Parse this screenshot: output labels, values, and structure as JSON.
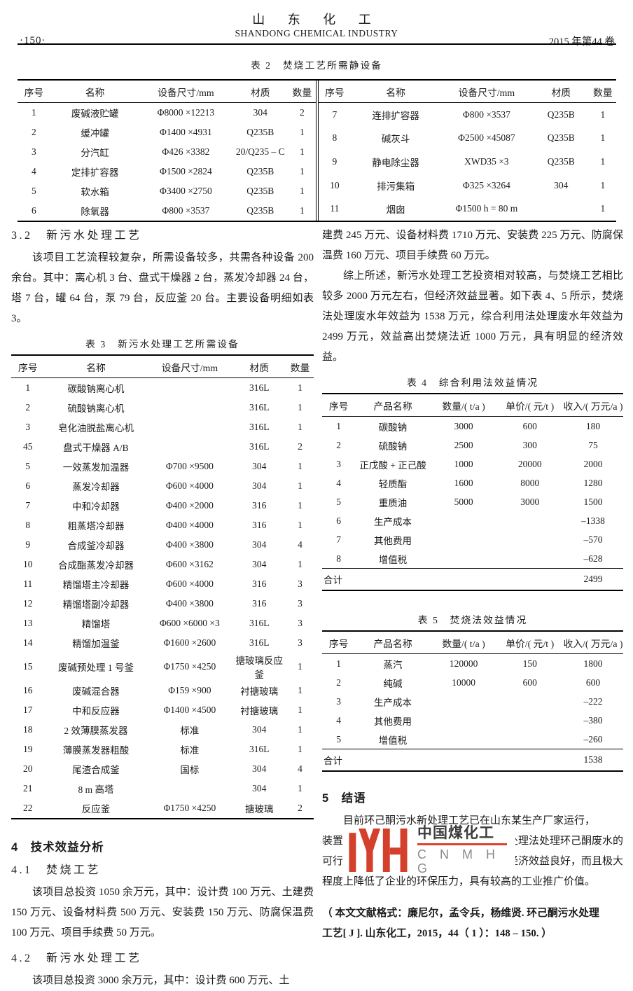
{
  "header": {
    "page_number": "·150·",
    "journal_cn": "山 东 化 工",
    "journal_en": "SHANDONG CHEMICAL INDUSTRY",
    "volume": "2015 年第44 卷"
  },
  "table2": {
    "caption": "表 2　焚烧工艺所需静设备",
    "columns": [
      "序号",
      "名称",
      "设备尺寸/mm",
      "材质",
      "数量"
    ],
    "left_rows": [
      [
        "1",
        "废碱液贮罐",
        "Φ8000 ×12213",
        "304",
        "2"
      ],
      [
        "2",
        "缓冲罐",
        "Φ1400 ×4931",
        "Q235B",
        "1"
      ],
      [
        "3",
        "分汽缸",
        "Φ426 ×3382",
        "20/Q235 – C",
        "1"
      ],
      [
        "4",
        "定排扩容器",
        "Φ1500 ×2824",
        "Q235B",
        "1"
      ],
      [
        "5",
        "软水箱",
        "Φ3400 ×2750",
        "Q235B",
        "1"
      ],
      [
        "6",
        "除氧器",
        "Φ800 ×3537",
        "Q235B",
        "1"
      ]
    ],
    "right_rows": [
      [
        "7",
        "连排扩容器",
        "Φ800 ×3537",
        "Q235B",
        "1"
      ],
      [
        "8",
        "碱灰斗",
        "Φ2500 ×45087",
        "Q235B",
        "1"
      ],
      [
        "9",
        "静电除尘器",
        "XWD35 ×3",
        "Q235B",
        "1"
      ],
      [
        "10",
        "排污集箱",
        "Φ325 ×3264",
        "304",
        "1"
      ],
      [
        "11",
        "烟囱",
        "Φ1500 h = 80 m",
        "",
        "1"
      ]
    ]
  },
  "section_3_2": {
    "title": "3.2　新污水处理工艺",
    "body": "该项目工艺流程较复杂，所需设备较多，共需各种设备 200 余台。其中：离心机 3 台、盘式干燥器 2 台，蒸发冷却器 24 台，塔 7 台，罐 64 台，泵 79 台，反应釜 20 台。主要设备明细如表 3。"
  },
  "table3": {
    "caption": "表 3　新污水处理工艺所需设备",
    "columns": [
      "序号",
      "名称",
      "设备尺寸/mm",
      "材质",
      "数量"
    ],
    "rows": [
      [
        "1",
        "碳酸钠离心机",
        "",
        "316L",
        "1"
      ],
      [
        "2",
        "硫酸钠离心机",
        "",
        "316L",
        "1"
      ],
      [
        "3",
        "皂化油脱盐离心机",
        "",
        "316L",
        "1"
      ],
      [
        "45",
        "盘式干燥器 A/B",
        "",
        "316L",
        "2"
      ],
      [
        "5",
        "一效蒸发加温器",
        "Φ700 ×9500",
        "304",
        "1"
      ],
      [
        "6",
        "蒸发冷却器",
        "Φ600 ×4000",
        "304",
        "1"
      ],
      [
        "7",
        "中和冷却器",
        "Φ400 ×2000",
        "316",
        "1"
      ],
      [
        "8",
        "粗蒸塔冷却器",
        "Φ400 ×4000",
        "316",
        "1"
      ],
      [
        "9",
        "合成釜冷却器",
        "Φ400 ×3800",
        "304",
        "4"
      ],
      [
        "10",
        "合成酯蒸发冷却器",
        "Φ600 ×3162",
        "304",
        "1"
      ],
      [
        "11",
        "精馏塔主冷却器",
        "Φ600 ×4000",
        "316",
        "3"
      ],
      [
        "12",
        "精馏塔副冷却器",
        "Φ400 ×3800",
        "316",
        "3"
      ],
      [
        "13",
        "精馏塔",
        "Φ600 ×6000 ×3",
        "316L",
        "3"
      ],
      [
        "14",
        "精馏加温釜",
        "Φ1600 ×2600",
        "316L",
        "3"
      ],
      [
        "15",
        "废碱预处理 1 号釜",
        "Φ1750 ×4250",
        "搪玻璃反应釜",
        "1"
      ],
      [
        "16",
        "废碱混合器",
        "Φ159 ×900",
        "衬搪玻璃",
        "1"
      ],
      [
        "17",
        "中和反应器",
        "Φ1400 ×4500",
        "衬搪玻璃",
        "1"
      ],
      [
        "18",
        "2 效薄膜蒸发器",
        "标准",
        "304",
        "1"
      ],
      [
        "19",
        "薄膜蒸发器粗酸",
        "标准",
        "316L",
        "1"
      ],
      [
        "20",
        "尾渣合成釜",
        "国标",
        "304",
        "4"
      ],
      [
        "21",
        "8 m 高塔",
        "",
        "304",
        "1"
      ],
      [
        "22",
        "反应釜",
        "Φ1750 ×4250",
        "搪玻璃",
        "2"
      ]
    ]
  },
  "section_4": {
    "title": "4　技术效益分析"
  },
  "section_4_1": {
    "title": "4.1　焚烧工艺",
    "body": "该项目总投资 1050 余万元，其中：设计费 100 万元、土建费 150 万元、设备材料费 500 万元、安装费 150 万元、防腐保温费 100 万元、项目手续费 50 万元。"
  },
  "section_4_2": {
    "title": "4.2　新污水处理工艺",
    "body": "该项目总投资 3000 余万元，其中：设计费 600 万元、土"
  },
  "right_col": {
    "p1": "建费 245 万元、设备材料费 1710 万元、安装费 225 万元、防腐保温费 160 万元、项目手续费 60 万元。",
    "p2": "综上所述，新污水处理工艺投资相对较高，与焚烧工艺相比较多 2000 万元左右，但经济效益显著。如下表 4、5 所示，焚烧法处理废水年效益为 1538 万元，综合利用法处理废水年效益为 2499 万元，效益高出焚烧法近 1000 万元，具有明显的经济效益。"
  },
  "table4": {
    "caption": "表 4　综合利用法效益情况",
    "columns": [
      "序号",
      "产品名称",
      "数量/( t/a )",
      "单价/( 元/t )",
      "收入/( 万元/a )"
    ],
    "rows": [
      [
        "1",
        "碳酸钠",
        "3000",
        "600",
        "180"
      ],
      [
        "2",
        "硫酸钠",
        "2500",
        "300",
        "75"
      ],
      [
        "3",
        "正戊酸 + 正己酸",
        "1000",
        "20000",
        "2000"
      ],
      [
        "4",
        "轻质酯",
        "1600",
        "8000",
        "1280"
      ],
      [
        "5",
        "重质油",
        "5000",
        "3000",
        "1500"
      ],
      [
        "6",
        "生产成本",
        "",
        "",
        "–1338"
      ],
      [
        "7",
        "其他费用",
        "",
        "",
        "–570"
      ],
      [
        "8",
        "增值税",
        "",
        "",
        "–628"
      ]
    ],
    "total_label": "合计",
    "total_value": "2499"
  },
  "table5": {
    "caption": "表 5　焚烧法效益情况",
    "columns": [
      "序号",
      "产品名称",
      "数量/( t/a )",
      "单价/( 元/t )",
      "收入/( 万元/a )"
    ],
    "rows": [
      [
        "1",
        "蒸汽",
        "120000",
        "150",
        "1800"
      ],
      [
        "2",
        "纯碱",
        "10000",
        "600",
        "600"
      ],
      [
        "3",
        "生产成本",
        "",
        "",
        "–222"
      ],
      [
        "4",
        "其他费用",
        "",
        "",
        "–380"
      ],
      [
        "5",
        "增值税",
        "",
        "",
        "–260"
      ]
    ],
    "total_label": "合计",
    "total_value": "1538"
  },
  "section_5": {
    "title": "5　结语",
    "line1": "目前环己酮污水新处理工艺已在山东某生产厂家运行，",
    "line2_left": "装置",
    "line2_right": "处理法处理环己酮废水的",
    "line3_left": "可行",
    "line3_right": "又经济效益良好，而且极大",
    "line4": "程度上降低了企业的环保压力，具有较高的工业推广价值。"
  },
  "watermark": {
    "cn": "中国煤化工",
    "en": "C N M H G",
    "logo_color": "#d4402b",
    "underline_color": "#e0402e",
    "en_color": "#8a8a8a"
  },
  "reference": {
    "line1": "（ 本文文献格式：廉尼尔，孟令兵，杨维贤. 环己酮污水处理",
    "line2": "工艺[ J ]. 山东化工，2015，44（ 1 ）：148 – 150. ）"
  }
}
